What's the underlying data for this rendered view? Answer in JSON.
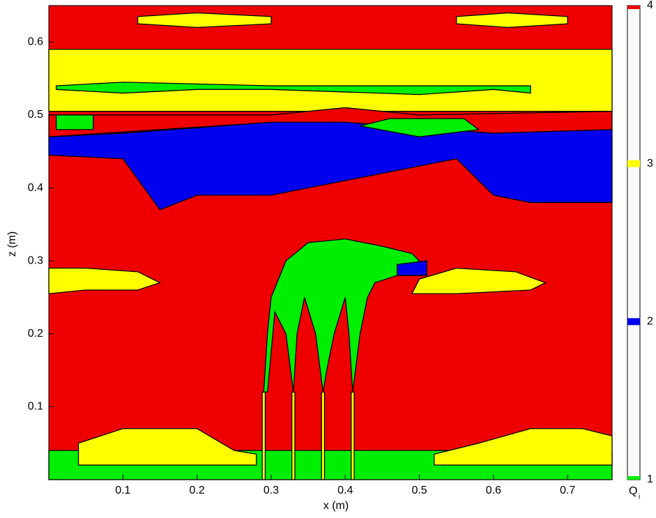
{
  "chart_data": {
    "type": "region_map",
    "xlabel": "x (m)",
    "ylabel": "z (m)",
    "xlim": [
      0,
      0.76
    ],
    "ylim": [
      0,
      0.65
    ],
    "xticks": [
      0.1,
      0.2,
      0.3,
      0.4,
      0.5,
      0.6,
      0.7
    ],
    "yticks": [
      0.1,
      0.2,
      0.3,
      0.4,
      0.5,
      0.6
    ],
    "background_value": 4,
    "colorbar": {
      "label": "Q",
      "label_sub": "i",
      "lim": [
        1,
        4
      ],
      "ticks": [
        1,
        2,
        3,
        4
      ],
      "colors": [
        "#00ee00",
        "#0000ee",
        "#ffff00",
        "#ee0000"
      ]
    },
    "regions": [
      {
        "value": 3,
        "x": [
          0,
          0.76,
          0.76,
          0
        ],
        "z": [
          0.505,
          0.505,
          0.59,
          0.59
        ]
      },
      {
        "value": 3,
        "x": [
          0.12,
          0.2,
          0.3,
          0.3,
          0.2,
          0.12
        ],
        "z": [
          0.625,
          0.62,
          0.625,
          0.635,
          0.64,
          0.635
        ]
      },
      {
        "value": 3,
        "x": [
          0.55,
          0.62,
          0.7,
          0.7,
          0.62,
          0.55
        ],
        "z": [
          0.625,
          0.62,
          0.625,
          0.635,
          0.64,
          0.635
        ]
      },
      {
        "value": 1,
        "x": [
          0.01,
          0.1,
          0.2,
          0.3,
          0.5,
          0.6,
          0.65,
          0.65,
          0.5,
          0.3,
          0.1,
          0.01
        ],
        "z": [
          0.535,
          0.53,
          0.535,
          0.535,
          0.528,
          0.535,
          0.53,
          0.54,
          0.54,
          0.54,
          0.545,
          0.54
        ]
      },
      {
        "value": 4,
        "x": [
          0,
          0.3,
          0.4,
          0.6,
          0.76,
          0.76,
          0.5,
          0.4,
          0.3,
          0
        ],
        "z": [
          0.47,
          0.49,
          0.49,
          0.475,
          0.48,
          0.505,
          0.5,
          0.51,
          0.5,
          0.5
        ]
      },
      {
        "value": 2,
        "x": [
          0,
          0.1,
          0.15,
          0.2,
          0.3,
          0.45,
          0.55,
          0.6,
          0.65,
          0.76,
          0.76,
          0.6,
          0.4,
          0.3,
          0.1,
          0
        ],
        "z": [
          0.445,
          0.44,
          0.37,
          0.39,
          0.39,
          0.42,
          0.44,
          0.39,
          0.38,
          0.38,
          0.48,
          0.475,
          0.49,
          0.49,
          0.475,
          0.47
        ]
      },
      {
        "value": 1,
        "x": [
          0.01,
          0.06,
          0.06,
          0.01
        ],
        "z": [
          0.48,
          0.48,
          0.5,
          0.5
        ]
      },
      {
        "value": 1,
        "x": [
          0.42,
          0.5,
          0.58,
          0.56,
          0.46
        ],
        "z": [
          0.485,
          0.47,
          0.48,
          0.495,
          0.495
        ]
      },
      {
        "value": 3,
        "x": [
          0,
          0.05,
          0.12,
          0.15,
          0.12,
          0.05,
          0
        ],
        "z": [
          0.255,
          0.26,
          0.26,
          0.27,
          0.285,
          0.29,
          0.29
        ]
      },
      {
        "value": 3,
        "x": [
          0.49,
          0.55,
          0.65,
          0.67,
          0.63,
          0.55,
          0.5
        ],
        "z": [
          0.255,
          0.255,
          0.26,
          0.27,
          0.285,
          0.29,
          0.275
        ]
      },
      {
        "value": 1,
        "x": [
          0,
          0.76,
          0.76,
          0
        ],
        "z": [
          0,
          0,
          0.04,
          0.04
        ]
      },
      {
        "value": 3,
        "x": [
          0.04,
          0.1,
          0.2,
          0.25,
          0.28,
          0.28,
          0.04
        ],
        "z": [
          0.05,
          0.07,
          0.07,
          0.04,
          0.035,
          0.02,
          0.02
        ]
      },
      {
        "value": 3,
        "x": [
          0.52,
          0.58,
          0.65,
          0.72,
          0.76,
          0.76,
          0.52
        ],
        "z": [
          0.035,
          0.05,
          0.07,
          0.07,
          0.06,
          0.02,
          0.02
        ]
      },
      {
        "value": 1,
        "x": [
          0.29,
          0.295,
          0.3,
          0.32,
          0.35,
          0.4,
          0.45,
          0.49,
          0.5,
          0.47,
          0.44,
          0.43,
          0.42,
          0.41,
          0.405,
          0.4,
          0.385,
          0.375,
          0.37,
          0.36,
          0.345,
          0.335,
          0.33,
          0.32,
          0.305,
          0.295
        ],
        "z": [
          0.12,
          0.2,
          0.25,
          0.3,
          0.325,
          0.33,
          0.32,
          0.31,
          0.3,
          0.28,
          0.27,
          0.25,
          0.2,
          0.12,
          0.2,
          0.25,
          0.2,
          0.15,
          0.12,
          0.2,
          0.25,
          0.2,
          0.12,
          0.2,
          0.23,
          0.12
        ]
      },
      {
        "value": 2,
        "x": [
          0.47,
          0.51,
          0.51,
          0.47
        ],
        "z": [
          0.28,
          0.28,
          0.3,
          0.295
        ]
      },
      {
        "value": 3,
        "x": [
          0.288,
          0.292,
          0.292,
          0.288
        ],
        "z": [
          0,
          0,
          0.12,
          0.12
        ]
      },
      {
        "value": 3,
        "x": [
          0.328,
          0.332,
          0.332,
          0.328
        ],
        "z": [
          0,
          0,
          0.12,
          0.12
        ]
      },
      {
        "value": 3,
        "x": [
          0.368,
          0.372,
          0.372,
          0.368
        ],
        "z": [
          0,
          0,
          0.12,
          0.12
        ]
      },
      {
        "value": 3,
        "x": [
          0.408,
          0.412,
          0.412,
          0.408
        ],
        "z": [
          0,
          0,
          0.12,
          0.12
        ]
      }
    ]
  }
}
